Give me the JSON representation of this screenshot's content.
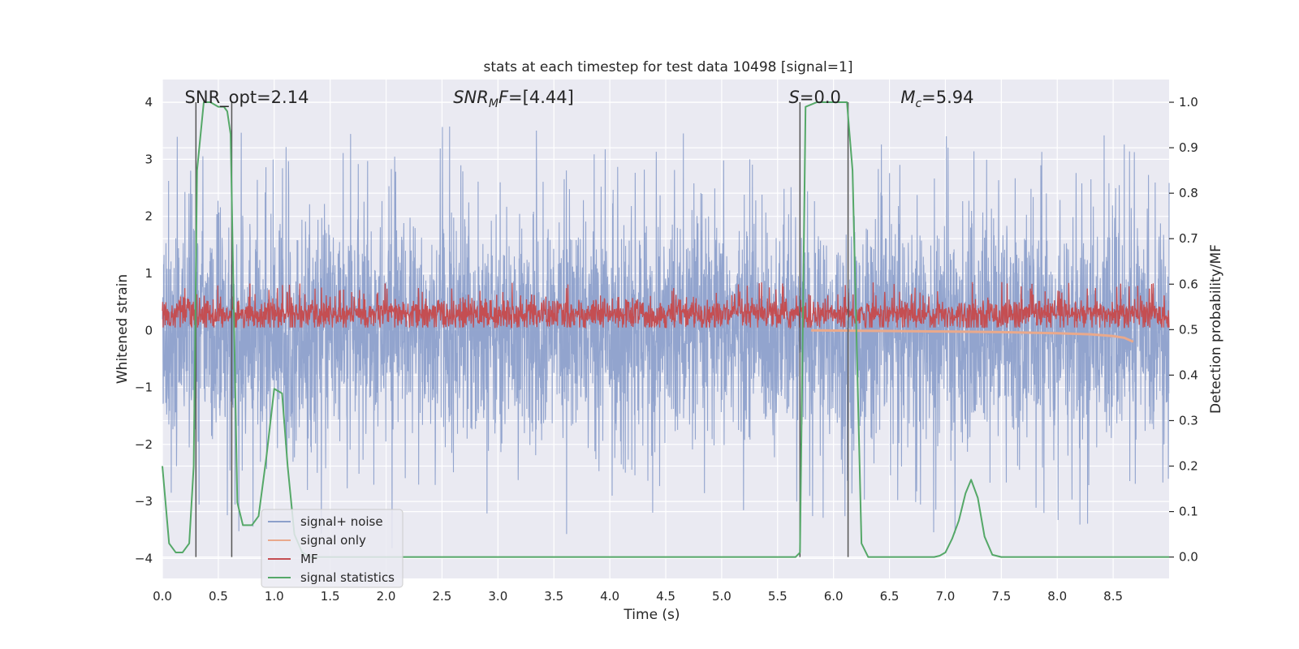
{
  "chart_data": {
    "type": "line",
    "title": "stats at each timestep for test data 10498 [signal=1]",
    "xlabel": "Time (s)",
    "ylabel_left": "Whitened strain",
    "ylabel_right": "Detection probability/MF",
    "xlim": [
      0.0,
      9.0
    ],
    "ylim_left": [
      -4.35,
      4.4
    ],
    "ylim_right": [
      -0.047,
      1.05
    ],
    "xticks": [
      0.0,
      0.5,
      1.0,
      1.5,
      2.0,
      2.5,
      3.0,
      3.5,
      4.0,
      4.5,
      5.0,
      5.5,
      6.0,
      6.5,
      7.0,
      7.5,
      8.0,
      8.5
    ],
    "xtick_labels": [
      "0.0",
      "0.5",
      "1.0",
      "1.5",
      "2.0",
      "2.5",
      "3.0",
      "3.5",
      "4.0",
      "4.5",
      "5.0",
      "5.5",
      "6.0",
      "6.5",
      "7.0",
      "7.5",
      "8.0",
      "8.5"
    ],
    "yticks_left": [
      -4,
      -3,
      -2,
      -1,
      0,
      1,
      2,
      3,
      4
    ],
    "ytick_labels_left": [
      "−4",
      "−3",
      "−2",
      "−1",
      "0",
      "1",
      "2",
      "3",
      "4"
    ],
    "yticks_right": [
      0.0,
      0.1,
      0.2,
      0.3,
      0.4,
      0.5,
      0.6,
      0.7,
      0.8,
      0.9,
      1.0
    ],
    "ytick_labels_right": [
      "0.0",
      "0.1",
      "0.2",
      "0.3",
      "0.4",
      "0.5",
      "0.6",
      "0.7",
      "0.8",
      "0.9",
      "1.0"
    ],
    "annotations": [
      {
        "text": "SNR_opt=2.14",
        "x": 0.2,
        "y": 4.0
      },
      {
        "text": "SNR_MF=[4.44]",
        "x": 2.6,
        "y": 4.0
      },
      {
        "text": "S=0.0",
        "x": 5.6,
        "y": 4.0
      },
      {
        "text": "M_c=5.94",
        "x": 6.6,
        "y": 4.0
      }
    ],
    "vertical_lines": [
      0.3,
      0.62,
      5.7,
      6.13
    ],
    "legend": {
      "position": "lower-left",
      "entries": [
        {
          "label": "signal+ noise",
          "color": "#8da0cb"
        },
        {
          "label": "signal only",
          "color": "#e9a98c"
        },
        {
          "label": "MF",
          "color": "#c44e52"
        },
        {
          "label": "signal statistics",
          "color": "#55a868"
        }
      ]
    },
    "series": [
      {
        "name": "signal+ noise",
        "axis": "left",
        "color": "#8da0cb",
        "description": "whitened noise trace, approx. range -4 to 4",
        "envelope_low": -1.6,
        "envelope_high": 1.6,
        "peak_high": 3.7,
        "peak_low": -3.95
      },
      {
        "name": "signal only",
        "axis": "left",
        "color": "#e9a98c",
        "x": [
          5.8,
          6.5,
          7.0,
          7.5,
          8.0,
          8.3,
          8.5,
          8.6,
          8.68
        ],
        "y": [
          0.0,
          -0.01,
          -0.02,
          -0.03,
          -0.05,
          -0.07,
          -0.1,
          -0.13,
          -0.2
        ]
      },
      {
        "name": "MF",
        "axis": "left",
        "color": "#c44e52",
        "description": "matched filter output, approx. range 0.05 to 1.0",
        "mean": 0.28,
        "low": 0.05,
        "high": 0.85
      },
      {
        "name": "signal statistics",
        "axis": "right",
        "color": "#55a868",
        "x": [
          0.0,
          0.06,
          0.12,
          0.18,
          0.24,
          0.28,
          0.31,
          0.37,
          0.43,
          0.5,
          0.55,
          0.58,
          0.61,
          0.67,
          0.72,
          0.8,
          0.86,
          0.93,
          1.0,
          1.07,
          1.12,
          1.18,
          1.25,
          1.32,
          1.5,
          2.0,
          3.0,
          4.0,
          5.0,
          5.5,
          5.6,
          5.66,
          5.7,
          5.75,
          5.85,
          5.95,
          6.05,
          6.12,
          6.17,
          6.25,
          6.31,
          6.4,
          6.6,
          6.8,
          6.9,
          6.95,
          7.0,
          7.06,
          7.12,
          7.18,
          7.23,
          7.29,
          7.35,
          7.42,
          7.5,
          7.6,
          8.0,
          8.5,
          9.0
        ],
        "y": [
          0.2,
          0.03,
          0.01,
          0.01,
          0.03,
          0.2,
          0.85,
          1.0,
          1.0,
          0.99,
          0.99,
          0.98,
          0.93,
          0.12,
          0.07,
          0.07,
          0.09,
          0.22,
          0.37,
          0.36,
          0.2,
          0.05,
          0.01,
          0.0,
          0.0,
          0.0,
          0.0,
          0.0,
          0.0,
          0.0,
          0.0,
          0.0,
          0.01,
          0.99,
          1.0,
          1.0,
          1.0,
          1.0,
          0.85,
          0.03,
          0.0,
          0.0,
          0.0,
          0.0,
          0.0,
          0.003,
          0.01,
          0.04,
          0.08,
          0.14,
          0.17,
          0.13,
          0.045,
          0.005,
          0.0,
          0.0,
          0.0,
          0.0,
          0.0
        ]
      }
    ]
  },
  "colors": {
    "plot_background": "#eaeaf2",
    "grid": "#ffffff",
    "text": "#262626",
    "vertical_line": "#555555"
  }
}
